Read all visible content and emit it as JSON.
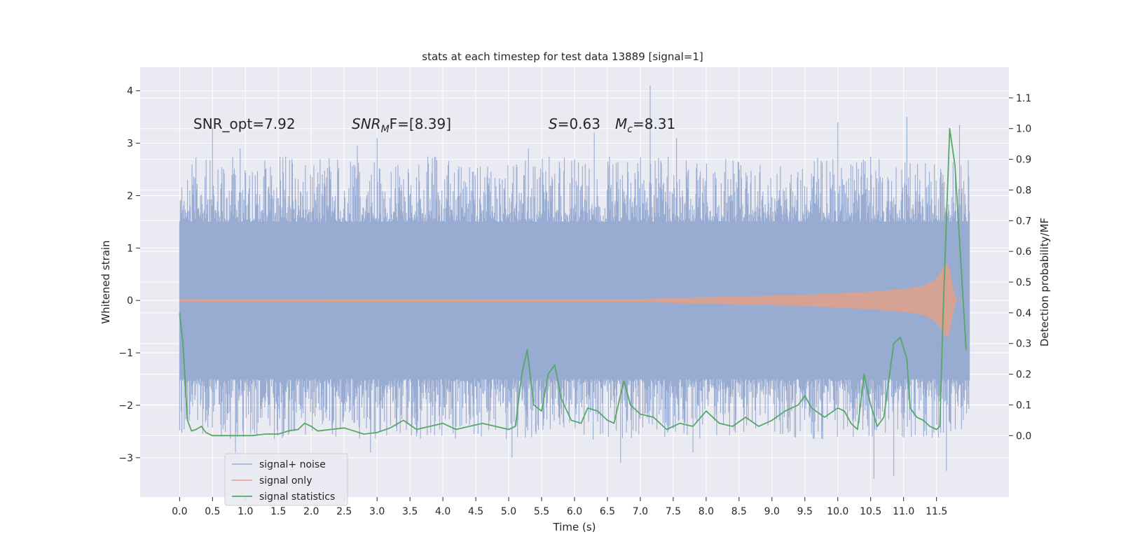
{
  "chart_data": {
    "type": "line",
    "title": "stats at each timestep for test data 13889 [signal=1]",
    "xlabel": "Time (s)",
    "ylabel": "Whitened strain",
    "ylabel_right": "Detection probability/MF",
    "xlim": [
      -0.6,
      12.6
    ],
    "ylim": [
      -3.75,
      4.45
    ],
    "ylim_right": [
      -0.2,
      1.2
    ],
    "x_ticks": [
      "0.0",
      "0.5",
      "1.0",
      "1.5",
      "2.0",
      "2.5",
      "3.0",
      "3.5",
      "4.0",
      "4.5",
      "5.0",
      "5.5",
      "6.0",
      "6.5",
      "7.0",
      "7.5",
      "8.0",
      "8.5",
      "9.0",
      "9.5",
      "10.0",
      "10.5",
      "11.0",
      "11.5"
    ],
    "y_ticks": [
      "−3",
      "−2",
      "−1",
      "0",
      "1",
      "2",
      "3",
      "4"
    ],
    "y_ticks_right": [
      "0.0",
      "0.1",
      "0.2",
      "0.3",
      "0.4",
      "0.5",
      "0.6",
      "0.7",
      "0.8",
      "0.9",
      "1.0",
      "1.1"
    ],
    "grid": true,
    "legend_position": "lower-left",
    "annotations": {
      "snr_opt": "SNR_opt=7.92",
      "snr_mf_main": "SNR",
      "snr_mf_sub": "M",
      "snr_mf_rest": "F=[8.39]",
      "s_var": "S",
      "s_val": "=0.63",
      "mc_var": "M",
      "mc_sub": "c",
      "mc_val": "=8.31"
    },
    "colors": {
      "background": "#eaeaf2",
      "grid": "#ffffff",
      "noise": "#98abd1",
      "signal": "#e0a08a",
      "stat": "#55a868"
    },
    "series": [
      {
        "name": "signal+ noise",
        "kind": "strain",
        "x_range": [
          0.0,
          12.0
        ],
        "envelope_max": 1.5,
        "spike_max": 4.1,
        "spike_min": -3.4,
        "peaks": [
          {
            "x": 0.5,
            "y": 3.3
          },
          {
            "x": 0.92,
            "y": 2.9
          },
          {
            "x": 2.7,
            "y": 2.95
          },
          {
            "x": 3.0,
            "y": 3.1
          },
          {
            "x": 5.3,
            "y": 2.9
          },
          {
            "x": 6.3,
            "y": 3.2
          },
          {
            "x": 7.15,
            "y": 4.1
          },
          {
            "x": 7.55,
            "y": 3.1
          },
          {
            "x": 10.0,
            "y": 3.4
          },
          {
            "x": 11.05,
            "y": 3.5
          },
          {
            "x": 11.85,
            "y": 3.35
          }
        ],
        "troughs": [
          {
            "x": 0.85,
            "y": -2.9
          },
          {
            "x": 2.9,
            "y": -2.9
          },
          {
            "x": 5.05,
            "y": -3.0
          },
          {
            "x": 6.7,
            "y": -3.1
          },
          {
            "x": 7.8,
            "y": -2.9
          },
          {
            "x": 10.55,
            "y": -3.4
          },
          {
            "x": 10.85,
            "y": -3.35
          },
          {
            "x": 11.65,
            "y": -3.25
          }
        ]
      },
      {
        "name": "signal only",
        "kind": "chirp",
        "x_range": [
          0.0,
          12.0
        ],
        "amplitude": [
          [
            0,
            0.015
          ],
          [
            7.0,
            0.02
          ],
          [
            7.5,
            0.04
          ],
          [
            8.5,
            0.07
          ],
          [
            9.5,
            0.1
          ],
          [
            10.5,
            0.16
          ],
          [
            11.0,
            0.21
          ],
          [
            11.3,
            0.27
          ],
          [
            11.5,
            0.4
          ],
          [
            11.62,
            0.65
          ],
          [
            11.68,
            0.7
          ],
          [
            11.75,
            0.2
          ],
          [
            11.8,
            0.0
          ],
          [
            12.0,
            0.0
          ]
        ]
      },
      {
        "name": "signal statistics",
        "kind": "line",
        "axis": "right",
        "points": [
          [
            0.0,
            0.4
          ],
          [
            0.05,
            0.3
          ],
          [
            0.12,
            0.05
          ],
          [
            0.18,
            0.015
          ],
          [
            0.25,
            0.02
          ],
          [
            0.33,
            0.03
          ],
          [
            0.4,
            0.01
          ],
          [
            0.5,
            0.0
          ],
          [
            0.6,
            0.0
          ],
          [
            0.75,
            0.0
          ],
          [
            0.9,
            0.0
          ],
          [
            1.1,
            0.0
          ],
          [
            1.3,
            0.005
          ],
          [
            1.5,
            0.005
          ],
          [
            1.65,
            0.015
          ],
          [
            1.8,
            0.02
          ],
          [
            1.9,
            0.04
          ],
          [
            2.0,
            0.03
          ],
          [
            2.1,
            0.015
          ],
          [
            2.3,
            0.02
          ],
          [
            2.5,
            0.025
          ],
          [
            2.65,
            0.015
          ],
          [
            2.8,
            0.005
          ],
          [
            3.0,
            0.01
          ],
          [
            3.2,
            0.025
          ],
          [
            3.4,
            0.05
          ],
          [
            3.6,
            0.02
          ],
          [
            3.8,
            0.03
          ],
          [
            4.0,
            0.04
          ],
          [
            4.2,
            0.02
          ],
          [
            4.4,
            0.03
          ],
          [
            4.6,
            0.04
          ],
          [
            4.8,
            0.03
          ],
          [
            5.0,
            0.02
          ],
          [
            5.1,
            0.03
          ],
          [
            5.2,
            0.2
          ],
          [
            5.28,
            0.28
          ],
          [
            5.38,
            0.1
          ],
          [
            5.5,
            0.08
          ],
          [
            5.6,
            0.2
          ],
          [
            5.7,
            0.23
          ],
          [
            5.8,
            0.12
          ],
          [
            5.95,
            0.05
          ],
          [
            6.1,
            0.04
          ],
          [
            6.2,
            0.09
          ],
          [
            6.35,
            0.08
          ],
          [
            6.5,
            0.05
          ],
          [
            6.6,
            0.04
          ],
          [
            6.75,
            0.18
          ],
          [
            6.85,
            0.1
          ],
          [
            7.0,
            0.07
          ],
          [
            7.2,
            0.06
          ],
          [
            7.4,
            0.02
          ],
          [
            7.6,
            0.04
          ],
          [
            7.8,
            0.03
          ],
          [
            8.0,
            0.08
          ],
          [
            8.2,
            0.04
          ],
          [
            8.4,
            0.03
          ],
          [
            8.6,
            0.06
          ],
          [
            8.8,
            0.03
          ],
          [
            9.0,
            0.05
          ],
          [
            9.2,
            0.08
          ],
          [
            9.4,
            0.1
          ],
          [
            9.5,
            0.13
          ],
          [
            9.6,
            0.09
          ],
          [
            9.8,
            0.06
          ],
          [
            10.0,
            0.09
          ],
          [
            10.1,
            0.08
          ],
          [
            10.2,
            0.04
          ],
          [
            10.3,
            0.02
          ],
          [
            10.4,
            0.2
          ],
          [
            10.5,
            0.1
          ],
          [
            10.6,
            0.03
          ],
          [
            10.7,
            0.06
          ],
          [
            10.85,
            0.3
          ],
          [
            10.95,
            0.32
          ],
          [
            11.05,
            0.25
          ],
          [
            11.1,
            0.09
          ],
          [
            11.2,
            0.06
          ],
          [
            11.3,
            0.05
          ],
          [
            11.4,
            0.03
          ],
          [
            11.5,
            0.02
          ],
          [
            11.55,
            0.03
          ],
          [
            11.6,
            0.4
          ],
          [
            11.7,
            1.0
          ],
          [
            11.78,
            0.88
          ],
          [
            11.86,
            0.6
          ],
          [
            11.95,
            0.28
          ]
        ]
      }
    ]
  }
}
